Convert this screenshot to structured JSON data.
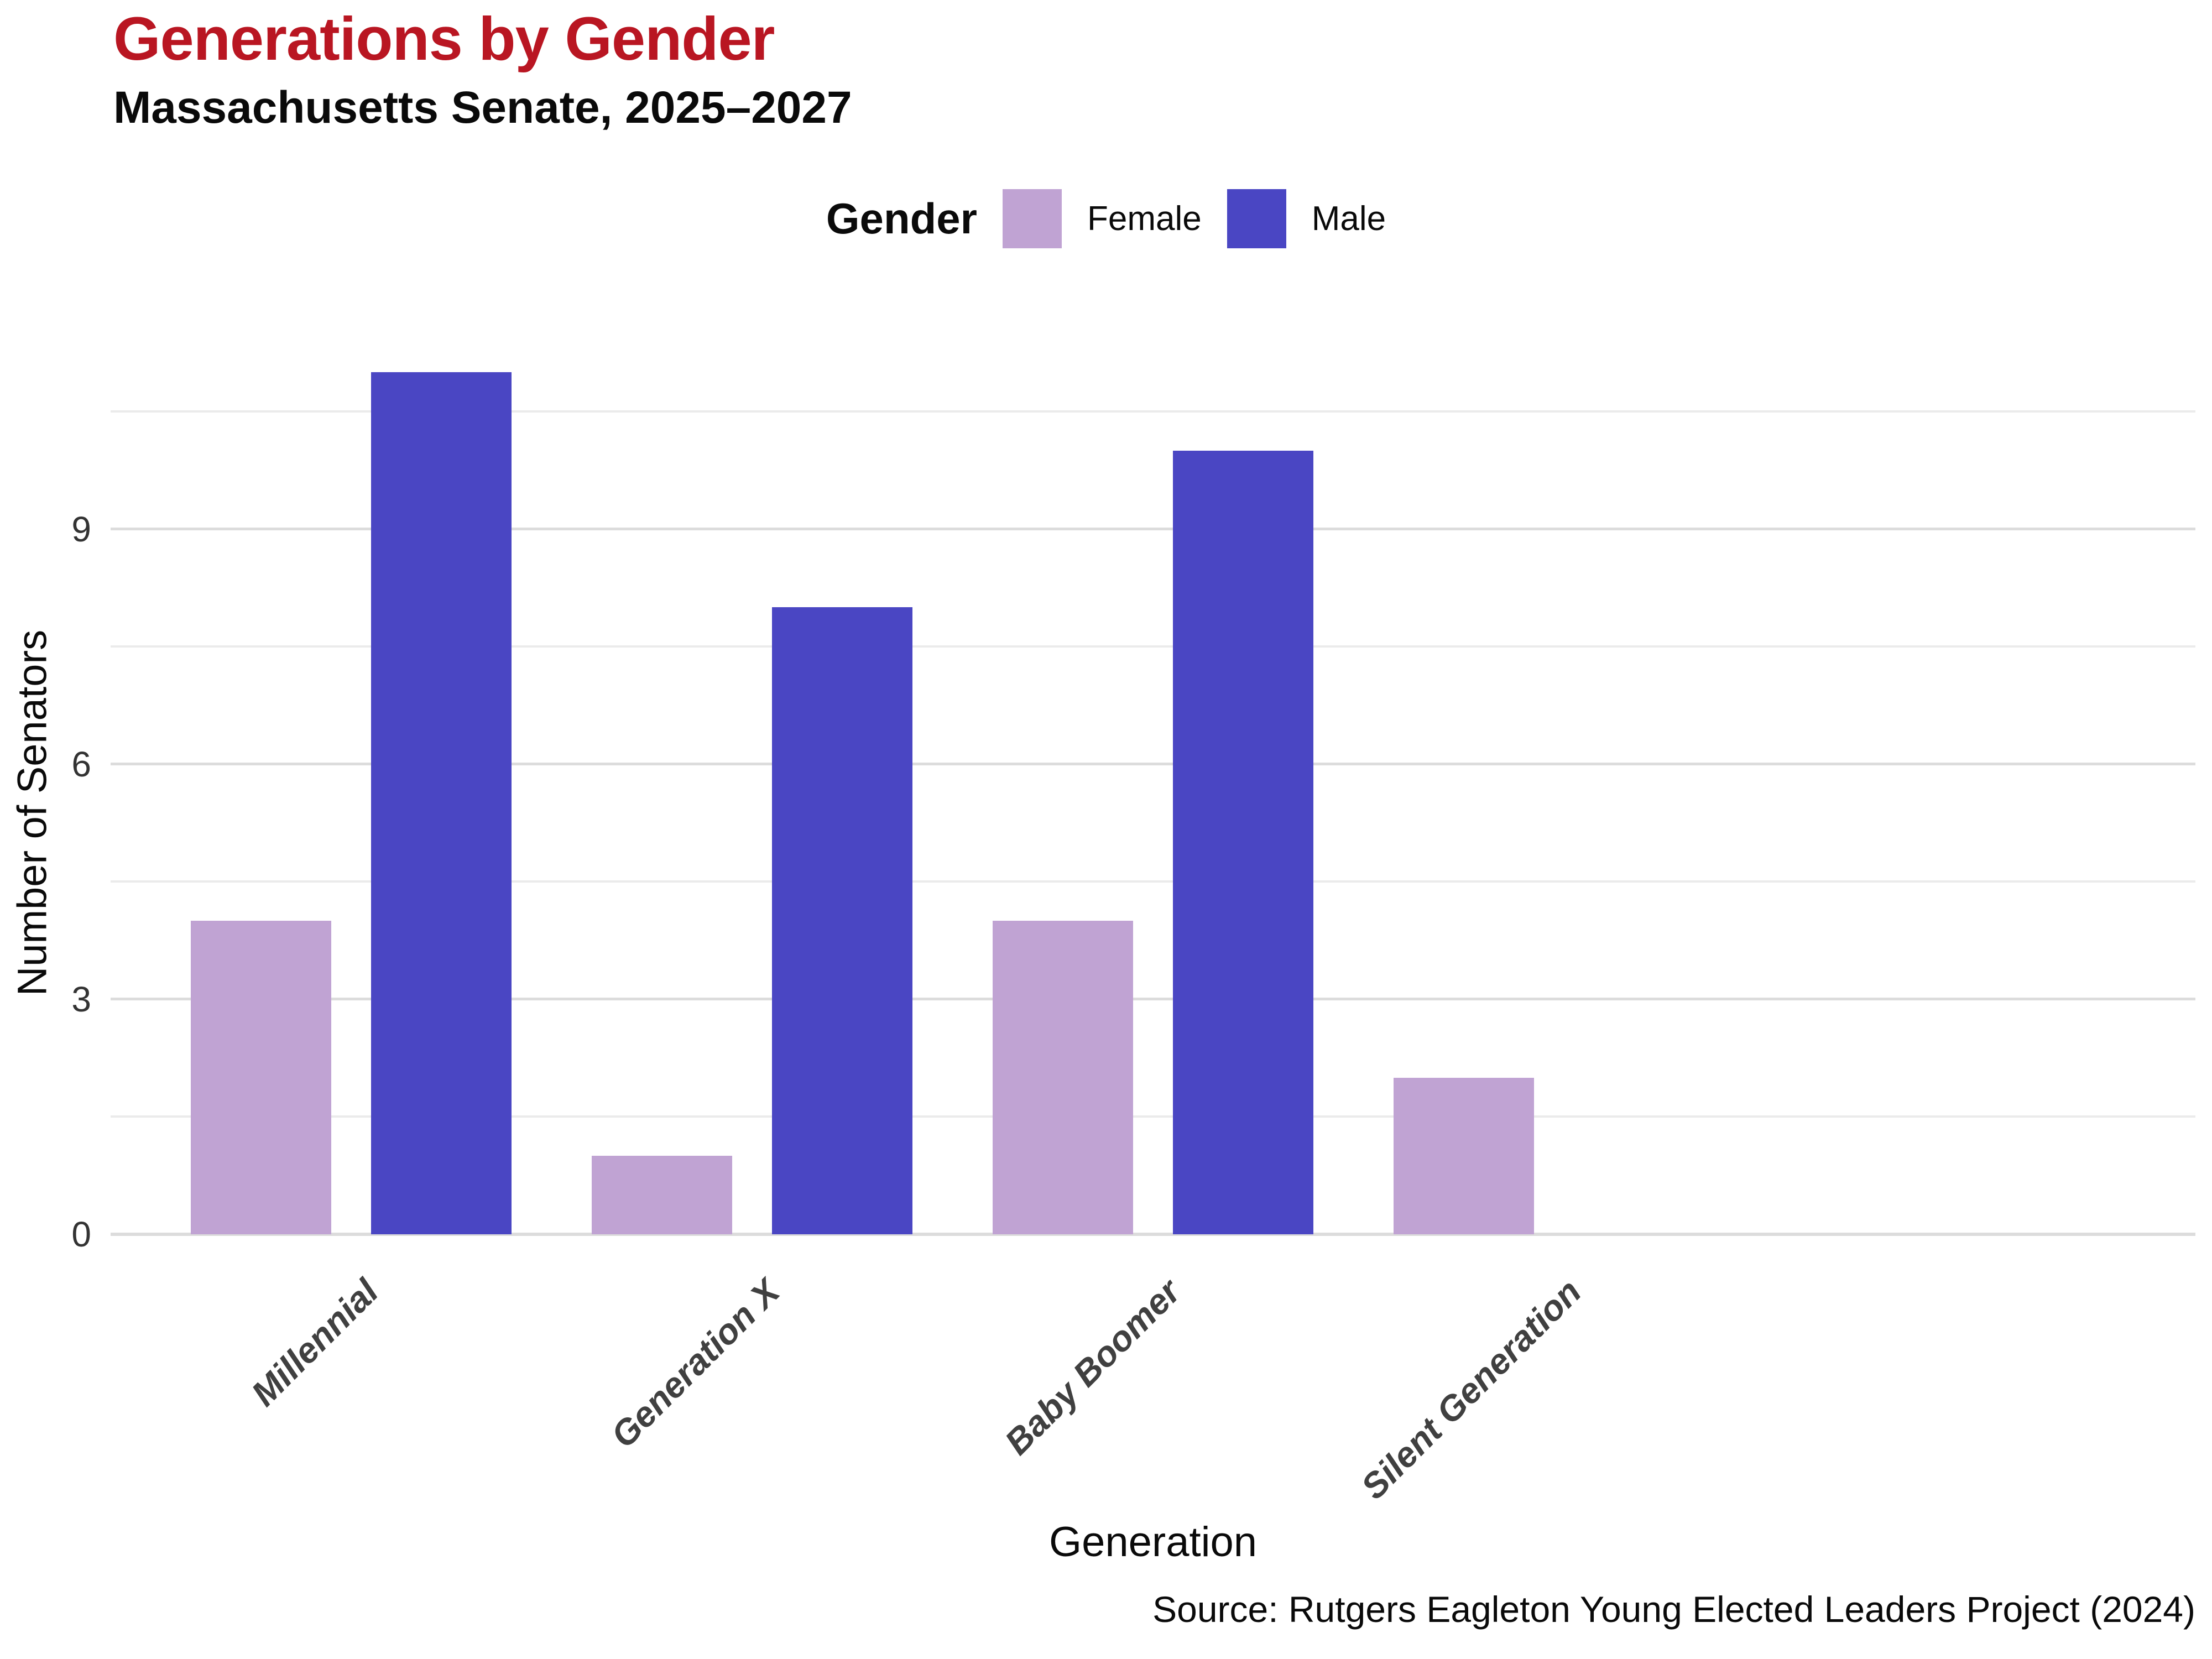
{
  "header": {
    "title": "Generations by Gender",
    "subtitle": "Massachusetts Senate, 2025–2027",
    "title_color": "#B91622"
  },
  "legend": {
    "title": "Gender",
    "items": [
      {
        "label": "Female",
        "color": "#C0A3D3"
      },
      {
        "label": "Male",
        "color": "#4A46C3"
      }
    ]
  },
  "axes": {
    "x_title": "Generation",
    "y_title": "Number of Senators",
    "y_ticks": [
      0,
      3,
      6,
      9
    ]
  },
  "footer": {
    "source": "Source: Rutgers Eagleton Young Elected Leaders Project (2024)"
  },
  "chart_data": {
    "type": "bar",
    "title": "Generations by Gender",
    "subtitle": "Massachusetts Senate, 2025–2027",
    "categories": [
      "Millennial",
      "Generation X",
      "Baby Boomer",
      "Silent Generation"
    ],
    "series": [
      {
        "name": "Female",
        "color": "#C0A3D3",
        "values": [
          4,
          1,
          4,
          2
        ]
      },
      {
        "name": "Male",
        "color": "#4A46C3",
        "values": [
          11,
          8,
          10,
          0
        ]
      }
    ],
    "xlabel": "Generation",
    "ylabel": "Number of Senators",
    "ylim": [
      0,
      11.7
    ],
    "yticks": [
      0,
      3,
      6,
      9
    ],
    "gridlines": "horizontal every 1.5, major at multiples of 3",
    "legend_position": "top center",
    "bar_layout": "grouped (dodged)"
  }
}
